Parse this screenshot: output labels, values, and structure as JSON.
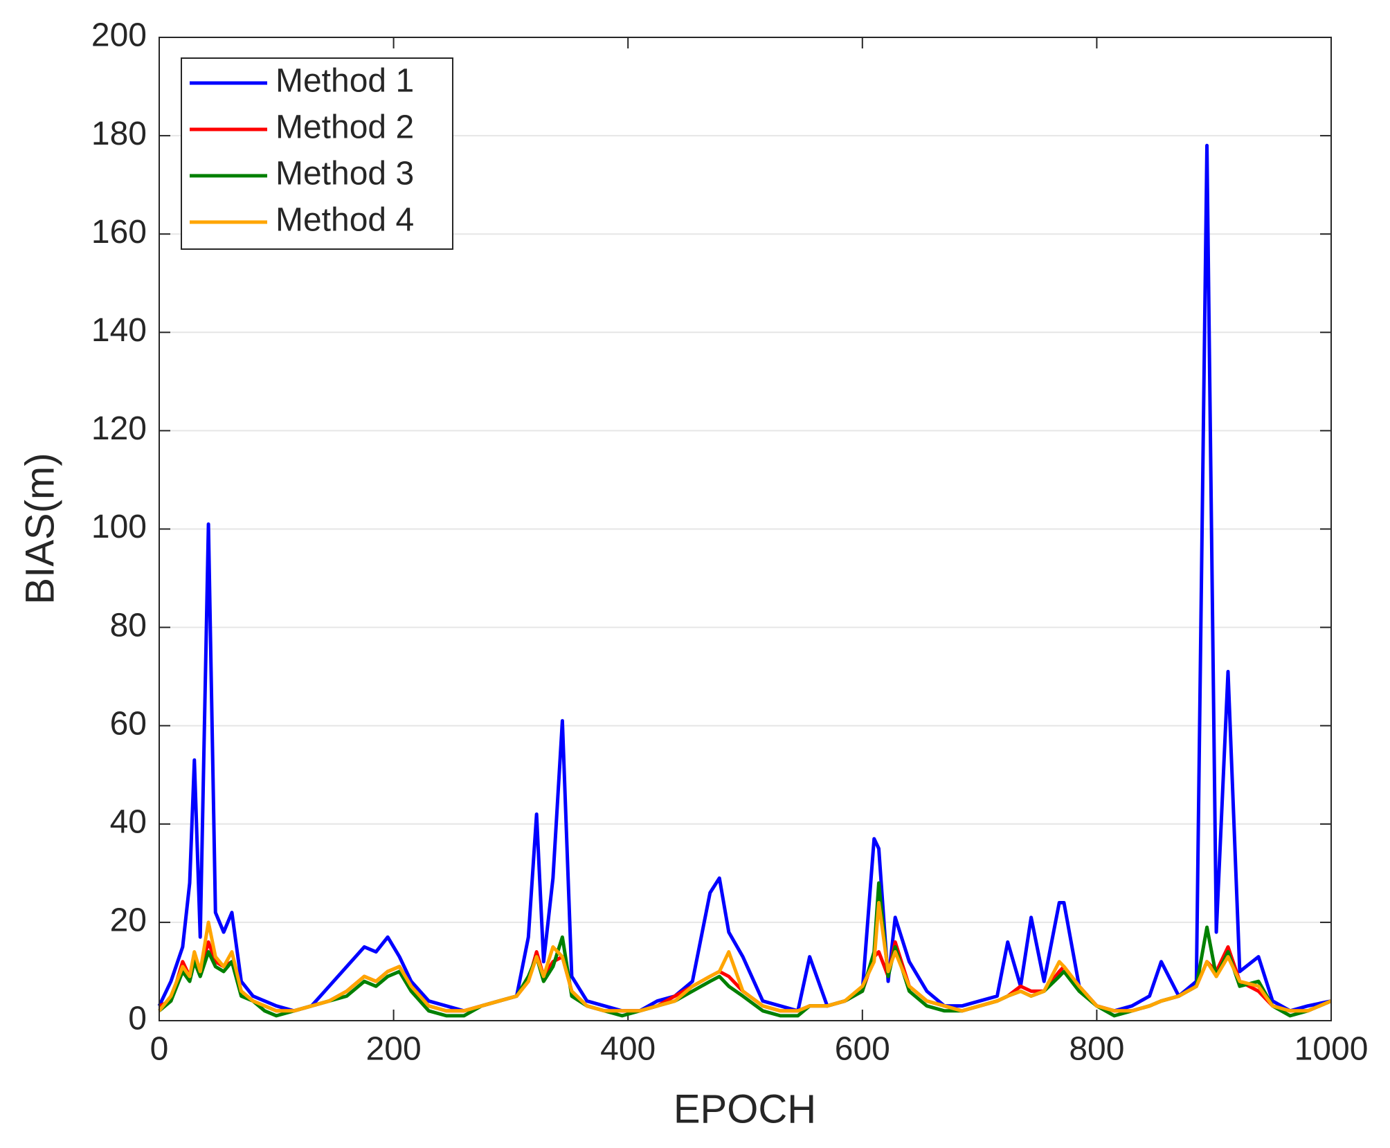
{
  "chart_data": {
    "type": "line",
    "xlabel": "EPOCH",
    "ylabel": "BIAS(m)",
    "x": [
      0,
      10,
      20,
      26,
      30,
      35,
      42,
      48,
      55,
      62,
      70,
      80,
      90,
      100,
      115,
      130,
      145,
      160,
      175,
      185,
      195,
      205,
      215,
      230,
      245,
      260,
      275,
      290,
      305,
      315,
      322,
      328,
      336,
      344,
      352,
      365,
      380,
      395,
      410,
      425,
      440,
      455,
      470,
      478,
      486,
      498,
      515,
      530,
      545,
      555,
      570,
      585,
      600,
      610,
      614,
      622,
      628,
      640,
      655,
      670,
      685,
      700,
      715,
      724,
      735,
      744,
      755,
      768,
      772,
      785,
      800,
      815,
      830,
      845,
      855,
      870,
      885,
      894,
      902,
      912,
      922,
      938,
      950,
      965,
      980,
      1000
    ],
    "series": [
      {
        "name": "Method 1",
        "color": "#0000ff",
        "values": [
          3,
          8,
          15,
          28,
          53,
          17,
          101,
          22,
          18,
          22,
          8,
          5,
          4,
          3,
          2,
          3,
          7,
          11,
          15,
          14,
          17,
          13,
          8,
          4,
          3,
          2,
          3,
          4,
          5,
          17,
          42,
          12,
          29,
          61,
          9,
          4,
          3,
          2,
          2,
          4,
          5,
          8,
          26,
          29,
          18,
          13,
          4,
          3,
          2,
          13,
          3,
          4,
          6,
          37,
          35,
          8,
          21,
          12,
          6,
          3,
          3,
          4,
          5,
          16,
          7,
          21,
          8,
          24,
          24,
          7,
          3,
          2,
          3,
          5,
          12,
          5,
          8,
          178,
          18,
          71,
          10,
          13,
          4,
          2,
          3,
          4
        ]
      },
      {
        "name": "Method 2",
        "color": "#ff0000",
        "values": [
          3,
          4,
          12,
          9,
          13,
          10,
          16,
          12,
          11,
          12,
          6,
          4,
          3,
          2,
          2,
          3,
          4,
          6,
          9,
          8,
          10,
          11,
          7,
          3,
          2,
          2,
          3,
          4,
          5,
          8,
          14,
          9,
          12,
          13,
          6,
          3,
          2,
          2,
          2,
          3,
          5,
          7,
          9,
          10,
          9,
          6,
          3,
          2,
          2,
          3,
          3,
          4,
          6,
          13,
          14,
          9,
          16,
          7,
          4,
          3,
          2,
          3,
          4,
          5,
          7,
          6,
          6,
          10,
          11,
          7,
          3,
          2,
          2,
          3,
          4,
          5,
          7,
          12,
          10,
          15,
          8,
          6,
          3,
          2,
          2,
          4
        ]
      },
      {
        "name": "Method 3",
        "color": "#008000",
        "values": [
          2,
          4,
          10,
          8,
          12,
          9,
          14,
          11,
          10,
          12,
          5,
          4,
          2,
          1,
          2,
          3,
          4,
          5,
          8,
          7,
          9,
          10,
          6,
          2,
          1,
          1,
          3,
          4,
          5,
          9,
          13,
          8,
          11,
          17,
          5,
          3,
          2,
          1,
          2,
          3,
          4,
          6,
          8,
          9,
          7,
          5,
          2,
          1,
          1,
          3,
          3,
          4,
          6,
          14,
          28,
          9,
          15,
          6,
          3,
          2,
          2,
          3,
          4,
          5,
          6,
          5,
          6,
          9,
          10,
          6,
          3,
          1,
          2,
          3,
          4,
          5,
          7,
          19,
          9,
          14,
          7,
          8,
          3,
          1,
          2,
          4
        ]
      },
      {
        "name": "Method 4",
        "color": "#ffa500",
        "values": [
          2,
          5,
          11,
          9,
          14,
          10,
          20,
          13,
          11,
          14,
          6,
          4,
          3,
          2,
          2,
          3,
          4,
          6,
          9,
          8,
          10,
          11,
          7,
          3,
          2,
          2,
          3,
          4,
          5,
          8,
          13,
          9,
          15,
          13,
          6,
          3,
          2,
          2,
          2,
          3,
          4,
          7,
          9,
          10,
          14,
          6,
          3,
          2,
          2,
          3,
          3,
          4,
          7,
          12,
          24,
          10,
          14,
          7,
          4,
          3,
          2,
          3,
          4,
          5,
          6,
          5,
          6,
          12,
          11,
          7,
          3,
          2,
          2,
          3,
          4,
          5,
          7,
          12,
          9,
          13,
          8,
          7,
          3,
          2,
          2,
          4
        ]
      }
    ],
    "xlim": [
      0,
      1000
    ],
    "xticks": [
      0,
      200,
      400,
      600,
      800,
      1000
    ],
    "ylim": [
      0,
      200
    ],
    "yticks": [
      0,
      20,
      40,
      60,
      80,
      100,
      120,
      140,
      160,
      180,
      200
    ],
    "grid": true,
    "legend": "upper left"
  }
}
